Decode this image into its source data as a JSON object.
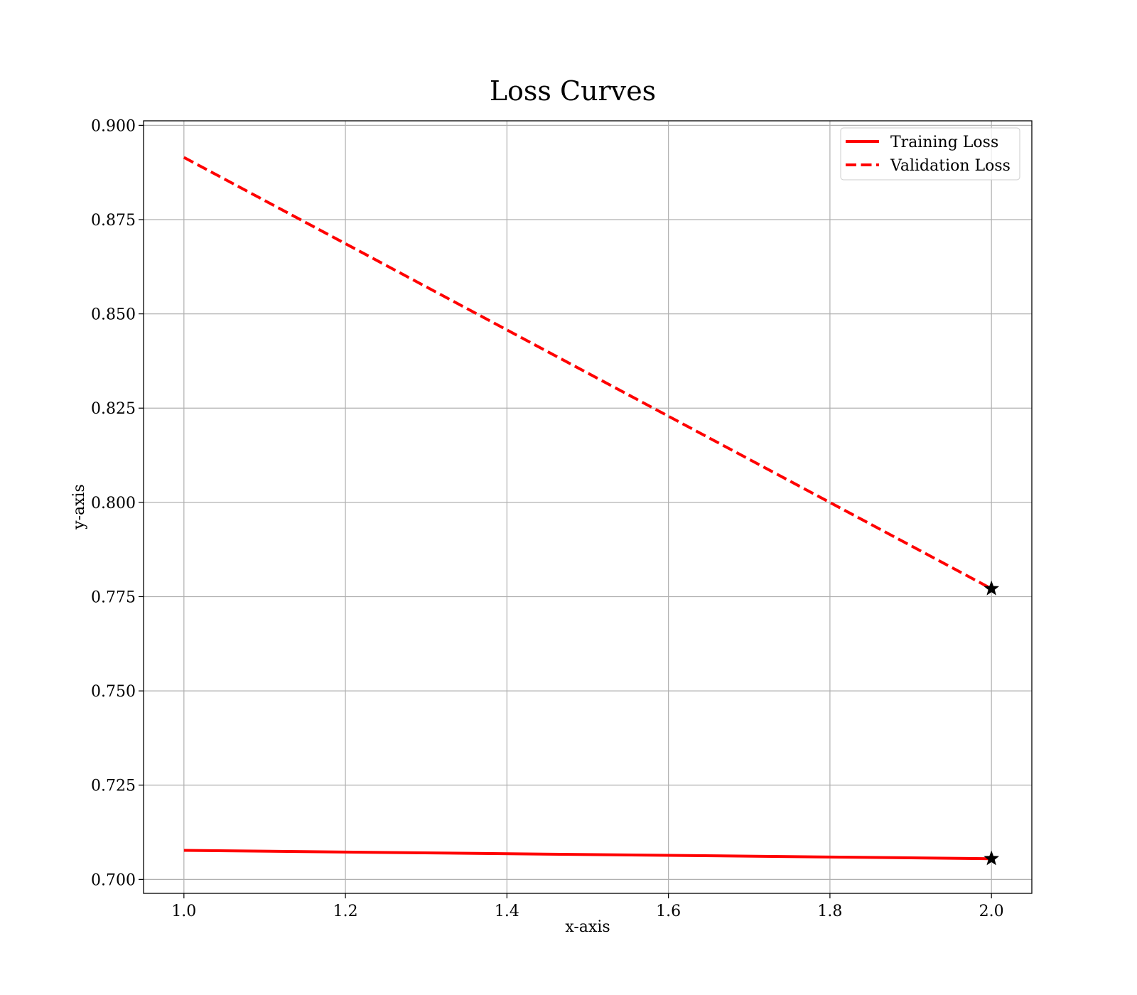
{
  "chart_data": {
    "type": "line",
    "title": "Loss Curves",
    "xlabel": "x-axis",
    "ylabel": "y-axis",
    "xlim": [
      0.95,
      2.05
    ],
    "ylim": [
      0.6963,
      0.9012
    ],
    "xticks": [
      1.0,
      1.2,
      1.4,
      1.6,
      1.8,
      2.0
    ],
    "xtick_labels": [
      "1.0",
      "1.2",
      "1.4",
      "1.6",
      "1.8",
      "2.0"
    ],
    "yticks": [
      0.7,
      0.725,
      0.75,
      0.775,
      0.8,
      0.825,
      0.85,
      0.875,
      0.9
    ],
    "ytick_labels": [
      "0.700",
      "0.725",
      "0.750",
      "0.775",
      "0.800",
      "0.825",
      "0.850",
      "0.875",
      "0.900"
    ],
    "grid": true,
    "legend_position": "upper right",
    "series": [
      {
        "name": "Training Loss",
        "x": [
          1.0,
          2.0
        ],
        "y": [
          0.7077,
          0.7055
        ],
        "color": "#ff0000",
        "linestyle": "solid",
        "end_marker": "star",
        "end_marker_color": "#000000"
      },
      {
        "name": "Validation Loss",
        "x": [
          1.0,
          2.0
        ],
        "y": [
          0.8915,
          0.7771
        ],
        "color": "#ff0000",
        "linestyle": "dashed",
        "end_marker": "star",
        "end_marker_color": "#000000"
      }
    ]
  }
}
